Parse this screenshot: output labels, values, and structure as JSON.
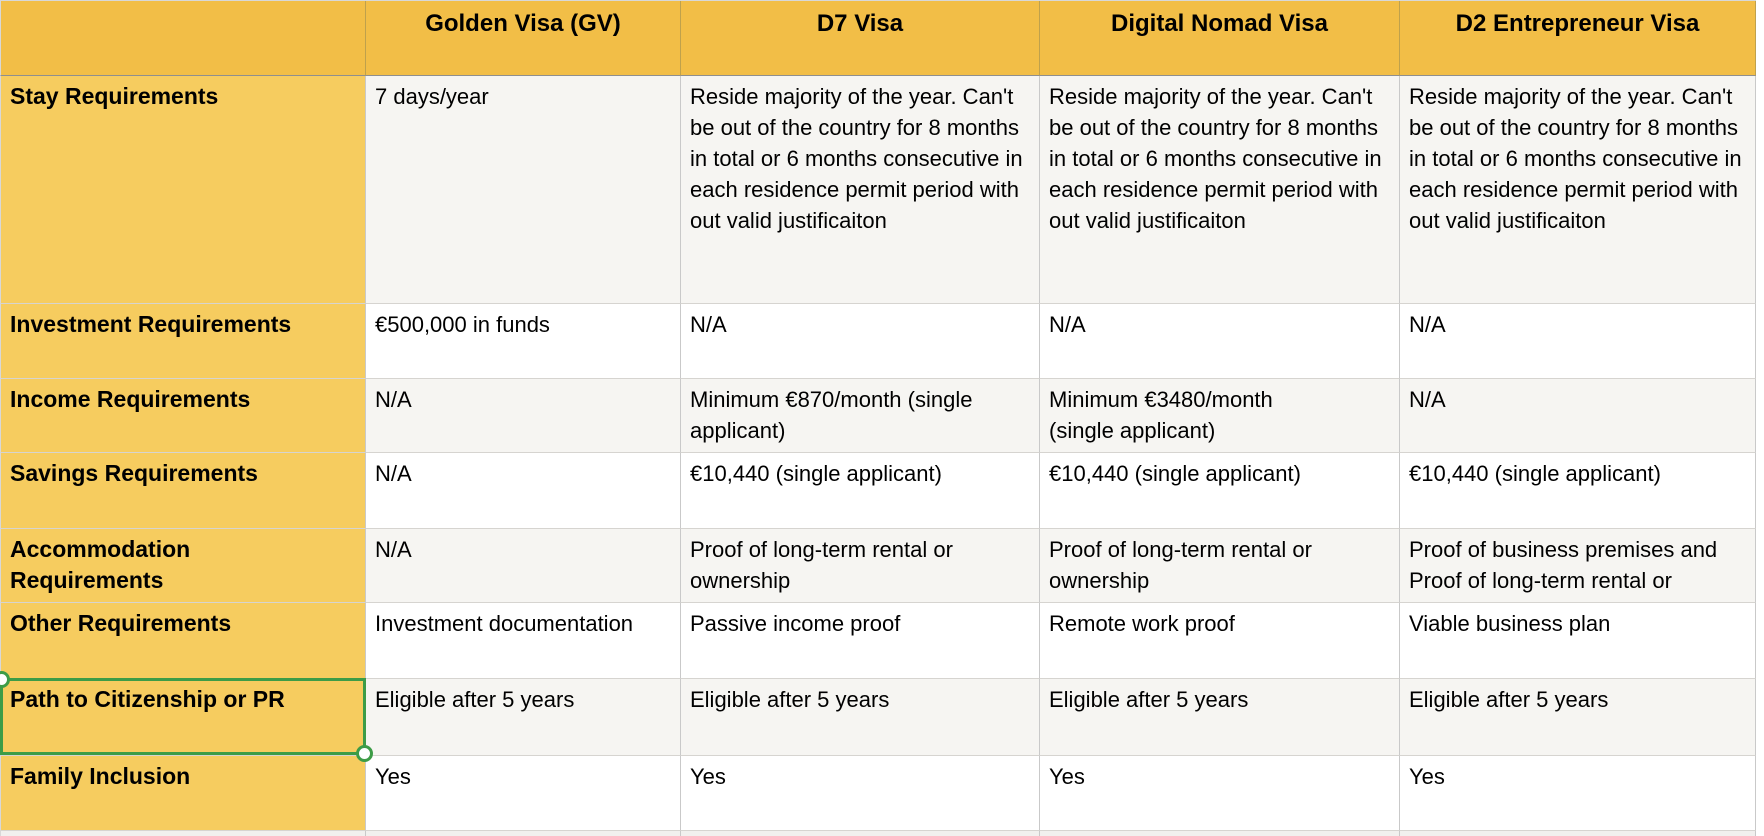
{
  "header": {
    "corner": "",
    "columns": [
      "Golden Visa (GV)",
      "D7 Visa",
      "Digital Nomad Visa",
      "D2 Entrepreneur Visa"
    ]
  },
  "rows": [
    {
      "label": "Stay Requirements",
      "cells": [
        "7 days/year",
        "Reside majority of the year. Can't be out of the country for 8 months in total or 6 months consecutive in each residence permit period with out valid justificaiton",
        "Reside majority of the year. Can't be out of the country for 8 months in total or 6 months consecutive in each residence permit period with out valid justificaiton",
        "Reside majority of the year. Can't be out of the country for 8 months in total or 6 months consecutive in each residence permit period with out valid justificaiton"
      ]
    },
    {
      "label": "Investment Requirements",
      "cells": [
        "€500,000 in funds",
        "N/A",
        "N/A",
        "N/A"
      ]
    },
    {
      "label": "Income Requirements",
      "cells": [
        "N/A",
        "Minimum €870/month (single\napplicant)",
        "Minimum €3480/month\n(single applicant)",
        "N/A"
      ]
    },
    {
      "label": "Savings Requirements",
      "cells": [
        "N/A",
        "€10,440 (single applicant)",
        "€10,440 (single applicant)",
        "€10,440 (single applicant)"
      ]
    },
    {
      "label": "Accommodation\nRequirements",
      "cells": [
        "N/A",
        "Proof of long-term rental or\nownership",
        "Proof of long-term rental or\nownership",
        "Proof of business premises and\nProof of long-term rental or\nownership"
      ]
    },
    {
      "label": "Other Requirements",
      "cells": [
        "Investment documentation",
        "Passive income proof",
        "Remote work proof",
        "Viable business plan"
      ]
    },
    {
      "label": "Path to Citizenship or PR",
      "cells": [
        "Eligible after 5 years",
        "Eligible after 5 years",
        "Eligible after 5 years",
        "Eligible after 5 years"
      ]
    },
    {
      "label": "Family Inclusion",
      "cells": [
        "Yes",
        "Yes",
        "Yes",
        "Yes"
      ]
    }
  ],
  "selection": {
    "selected_cell_label": "Path to Citizenship or PR"
  },
  "colors": {
    "header_bg": "#f2be47",
    "label_bg": "#f6cc5f",
    "band_bg": "#f6f5f2",
    "selection_green": "#3d9c47"
  }
}
